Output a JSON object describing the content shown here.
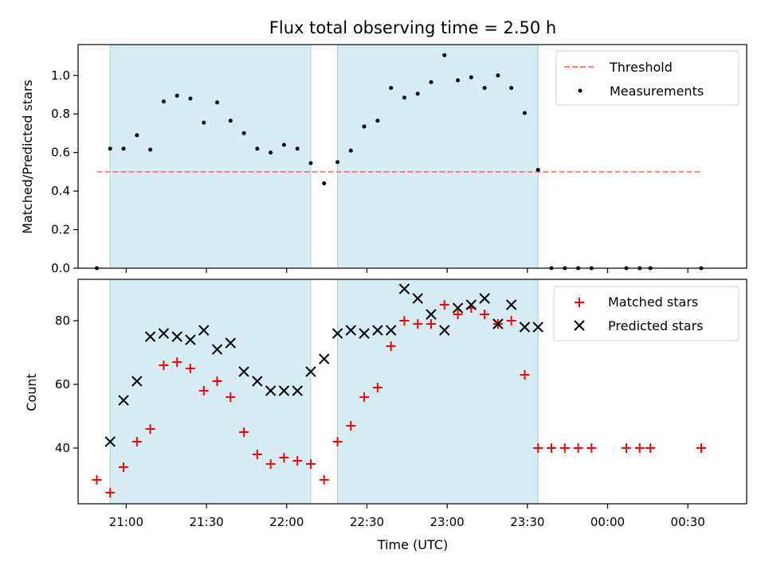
{
  "chart_data": [
    {
      "type": "scatter",
      "title": "Flux total observing time = 2.50 h",
      "xlabel": "",
      "ylabel": "Matched/Predicted stars",
      "xlim": [
        "20:42",
        "00:52"
      ],
      "ylim": [
        0,
        1.16
      ],
      "yticks": [
        "0.0",
        "0.2",
        "0.4",
        "0.6",
        "0.8",
        "1.0"
      ],
      "shaded_intervals": [
        [
          "20:54",
          "22:09"
        ],
        [
          "22:19",
          "23:34"
        ]
      ],
      "legend": {
        "placement": "top-right",
        "entries": [
          "Threshold",
          "Measurements"
        ]
      },
      "threshold": {
        "name": "Threshold",
        "value": 0.5,
        "x": [
          "20:49",
          "00:35"
        ],
        "color": "#ff7f7f"
      },
      "series": [
        {
          "name": "Measurements",
          "marker": "dot",
          "color": "#000000",
          "x": [
            "20:49",
            "20:54",
            "20:59",
            "21:04",
            "21:09",
            "21:14",
            "21:19",
            "21:24",
            "21:29",
            "21:34",
            "21:39",
            "21:44",
            "21:49",
            "21:54",
            "21:59",
            "22:04",
            "22:09",
            "22:14",
            "22:19",
            "22:24",
            "22:29",
            "22:34",
            "22:39",
            "22:44",
            "22:49",
            "22:54",
            "22:59",
            "23:04",
            "23:09",
            "23:14",
            "23:19",
            "23:24",
            "23:29",
            "23:34",
            "23:39",
            "23:44",
            "23:49",
            "23:54",
            "00:07",
            "00:12",
            "00:16",
            "00:35"
          ],
          "y": [
            0.0,
            0.62,
            0.62,
            0.69,
            0.615,
            0.865,
            0.895,
            0.88,
            0.755,
            0.86,
            0.765,
            0.7,
            0.62,
            0.6,
            0.64,
            0.62,
            0.545,
            0.44,
            0.55,
            0.61,
            0.735,
            0.765,
            0.935,
            0.885,
            0.905,
            0.965,
            1.105,
            0.975,
            0.99,
            0.935,
            1.0,
            0.935,
            0.805,
            0.51,
            0.0,
            0.0,
            0.0,
            0.0,
            0.0,
            0.0,
            0.0,
            0.0
          ]
        }
      ]
    },
    {
      "type": "scatter",
      "title": "",
      "xlabel": "Time (UTC)",
      "ylabel": "Count",
      "xlim": [
        "20:42",
        "00:52"
      ],
      "ylim": [
        22.5,
        93
      ],
      "yticks": [
        "40",
        "60",
        "80"
      ],
      "xticks": [
        "21:00",
        "21:30",
        "22:00",
        "22:30",
        "23:00",
        "23:30",
        "00:00",
        "00:30"
      ],
      "shaded_intervals": [
        [
          "20:54",
          "22:09"
        ],
        [
          "22:19",
          "23:34"
        ]
      ],
      "legend": {
        "placement": "top-right",
        "entries": [
          "Matched stars",
          "Predicted stars"
        ]
      },
      "series": [
        {
          "name": "Matched stars",
          "marker": "plus",
          "color": "#ff0000",
          "x": [
            "20:49",
            "20:54",
            "20:59",
            "21:04",
            "21:09",
            "21:14",
            "21:19",
            "21:24",
            "21:29",
            "21:34",
            "21:39",
            "21:44",
            "21:49",
            "21:54",
            "21:59",
            "22:04",
            "22:09",
            "22:14",
            "22:19",
            "22:24",
            "22:29",
            "22:34",
            "22:39",
            "22:44",
            "22:49",
            "22:54",
            "22:59",
            "23:04",
            "23:09",
            "23:14",
            "23:19",
            "23:24",
            "23:29",
            "23:34",
            "23:39",
            "23:44",
            "23:49",
            "23:54",
            "00:07",
            "00:12",
            "00:16",
            "00:35"
          ],
          "y": [
            30,
            26,
            34,
            42,
            46,
            66,
            67,
            65,
            58,
            61,
            56,
            45,
            38,
            35,
            37,
            36,
            35,
            30,
            42,
            47,
            56,
            59,
            72,
            80,
            79,
            79,
            85,
            82,
            84,
            82,
            79,
            80,
            63,
            40,
            40,
            40,
            40,
            40,
            40,
            40,
            40,
            40
          ]
        },
        {
          "name": "Predicted stars",
          "marker": "x",
          "color": "#000000",
          "x": [
            "20:54",
            "20:59",
            "21:04",
            "21:09",
            "21:14",
            "21:19",
            "21:24",
            "21:29",
            "21:34",
            "21:39",
            "21:44",
            "21:49",
            "21:54",
            "21:59",
            "22:04",
            "22:09",
            "22:14",
            "22:19",
            "22:24",
            "22:29",
            "22:34",
            "22:39",
            "22:44",
            "22:49",
            "22:54",
            "22:59",
            "23:04",
            "23:09",
            "23:14",
            "23:19",
            "23:24",
            "23:29",
            "23:34"
          ],
          "y": [
            42,
            55,
            61,
            75,
            76,
            75,
            74,
            77,
            71,
            73,
            64,
            61,
            58,
            58,
            58,
            64,
            68,
            76,
            77,
            76,
            77,
            77,
            90,
            87,
            82,
            77,
            84,
            85,
            87,
            79,
            85,
            78,
            78
          ]
        }
      ]
    }
  ]
}
